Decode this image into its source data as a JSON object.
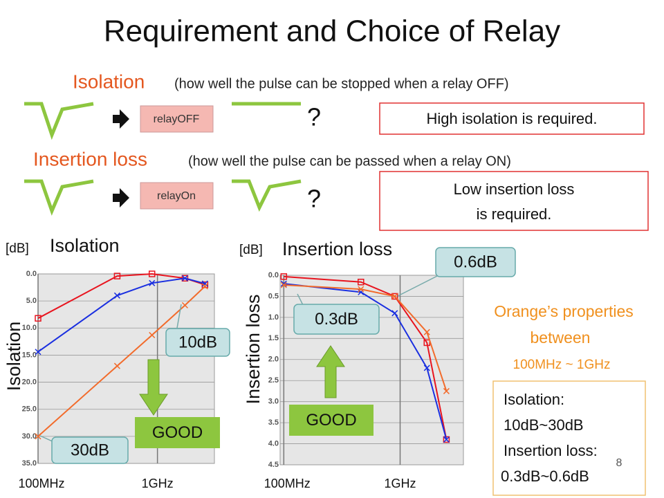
{
  "title": "Requirement and Choice of Relay",
  "rows": [
    {
      "heading": "Isolation",
      "desc": "(how well the pulse can be stopped when a relay OFF)",
      "relay": "relayOFF",
      "question": "?",
      "note": [
        "High isolation is required."
      ]
    },
    {
      "heading": "Insertion loss",
      "desc": "(how well the pulse can be passed when a relay ON)",
      "relay": "relayOn",
      "question": "?",
      "note": [
        "Low insertion loss",
        "is required."
      ]
    }
  ],
  "orange": {
    "lines": [
      "Orange’s properties",
      "between"
    ],
    "range": "100MHz ~ 1GHz"
  },
  "summary": [
    "Isolation:",
    "10dB~30dB",
    "Insertion loss:",
    "0.3dB~0.6dB"
  ],
  "page_number": "8",
  "chart_data": [
    {
      "type": "line",
      "title": "Isolation",
      "y_unit": "[dB]",
      "ylabel": "Isolation",
      "log_x": true,
      "grid": true,
      "x": [
        100,
        460,
        900,
        1700,
        2500
      ],
      "xlim": [
        100,
        3000
      ],
      "xticks": [
        {
          "value": 100,
          "label": "100MHz"
        },
        {
          "value": 1000,
          "label": "1GHz"
        }
      ],
      "ylim": [
        35,
        0
      ],
      "yticks": [
        {
          "value": 0,
          "label": "0.0"
        },
        {
          "value": 5,
          "label": "5.0"
        },
        {
          "value": 10,
          "label": "10.0"
        },
        {
          "value": 15,
          "label": "15.0"
        },
        {
          "value": 20,
          "label": "20.0"
        },
        {
          "value": 25,
          "label": "25.0"
        },
        {
          "value": 30,
          "label": "30.0"
        },
        {
          "value": 35,
          "label": "35.0"
        }
      ],
      "series": [
        {
          "color": "#e8141e",
          "marker": "square",
          "values": [
            8.2,
            0.4,
            0,
            0.8,
            2
          ]
        },
        {
          "color": "#1a2fe0",
          "marker": "x",
          "values": [
            14.4,
            4,
            1.7,
            0.8,
            1.8
          ]
        },
        {
          "color": "#f26b2b",
          "marker": "x",
          "values": [
            30,
            17,
            11.3,
            5.8,
            2.3
          ]
        }
      ],
      "annotations": [
        "10dB",
        "GOOD",
        "30dB"
      ]
    },
    {
      "type": "line",
      "title": "Insertion loss",
      "y_unit": "[dB]",
      "ylabel": "Insertion loss",
      "log_x": true,
      "grid": true,
      "x": [
        100,
        460,
        900,
        1700,
        2500
      ],
      "xlim": [
        93,
        3500
      ],
      "xticks": [
        {
          "value": 100,
          "label": "100MHz"
        },
        {
          "value": 1000,
          "label": "1GHz"
        }
      ],
      "ylim": [
        4.5,
        0
      ],
      "yticks": [
        {
          "value": 0,
          "label": "0.0"
        },
        0.5,
        {
          "value": 1,
          "label": "1.0"
        },
        1.5,
        {
          "value": 2,
          "label": "2.0"
        },
        2.5,
        {
          "value": 3,
          "label": "3.0"
        },
        3.5,
        {
          "value": 4,
          "label": "4.0"
        },
        4.5
      ],
      "series": [
        {
          "color": "#e8141e",
          "marker": "square",
          "values": [
            0.03,
            0.16,
            0.5,
            1.6,
            3.9
          ]
        },
        {
          "color": "#1a2fe0",
          "marker": "x",
          "values": [
            0.2,
            0.4,
            0.9,
            2.2,
            3.9
          ]
        },
        {
          "color": "#f26b2b",
          "marker": "x",
          "values": [
            0.23,
            0.33,
            0.5,
            1.35,
            2.75
          ]
        }
      ],
      "annotations": [
        "0.6dB",
        "0.3dB",
        "GOOD"
      ]
    }
  ]
}
